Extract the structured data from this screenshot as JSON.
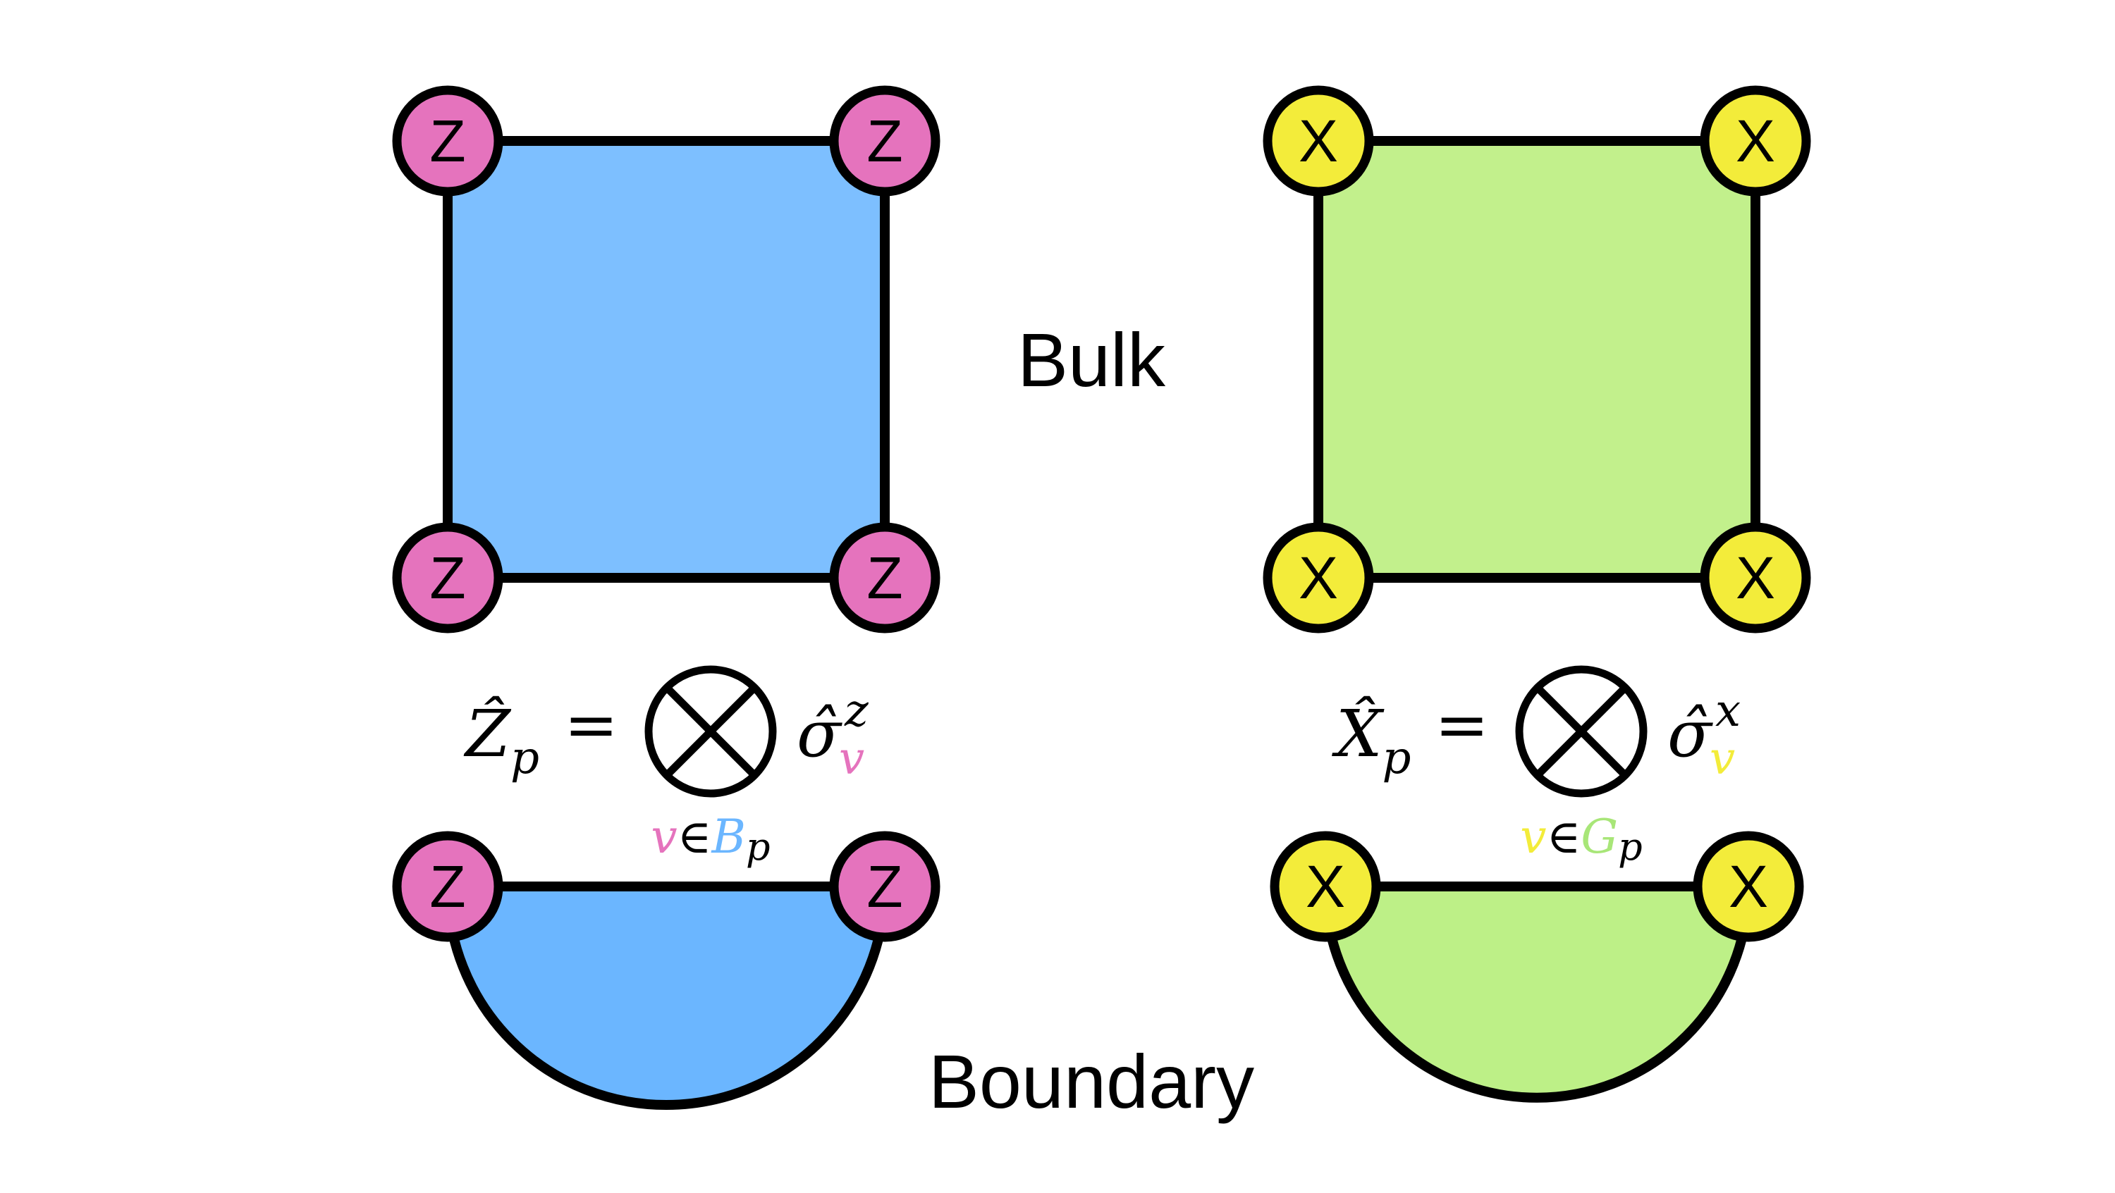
{
  "labels": {
    "bulk": "Bulk",
    "boundary": "Boundary"
  },
  "plaquettes": {
    "z": {
      "vertex_label": "Z",
      "vertex_color": "#e573bd",
      "bulk_fill": "#7dbfff",
      "boundary_fill": "#6bb6ff"
    },
    "x": {
      "vertex_label": "X",
      "vertex_color": "#f3ec3a",
      "bulk_fill": "#c2f08c",
      "boundary_fill": "#bdf087"
    }
  },
  "formulas": {
    "z": {
      "operator": "Ẑ",
      "operator_sub": "p",
      "equals": "=",
      "sigma": "σ̂",
      "sigma_sup": "z",
      "sigma_sub": "v",
      "range_var": "v",
      "range_in": "∈",
      "range_set": "B",
      "range_set_sub": "p",
      "var_color": "#e573bd",
      "set_color": "#6bb6ff"
    },
    "x": {
      "operator": "X̂",
      "operator_sub": "p",
      "equals": "=",
      "sigma": "σ̂",
      "sigma_sup": "x",
      "sigma_sub": "v",
      "range_var": "v",
      "range_in": "∈",
      "range_set": "G",
      "range_set_sub": "p",
      "var_color": "#f3ec3a",
      "set_color": "#a8e678"
    }
  }
}
